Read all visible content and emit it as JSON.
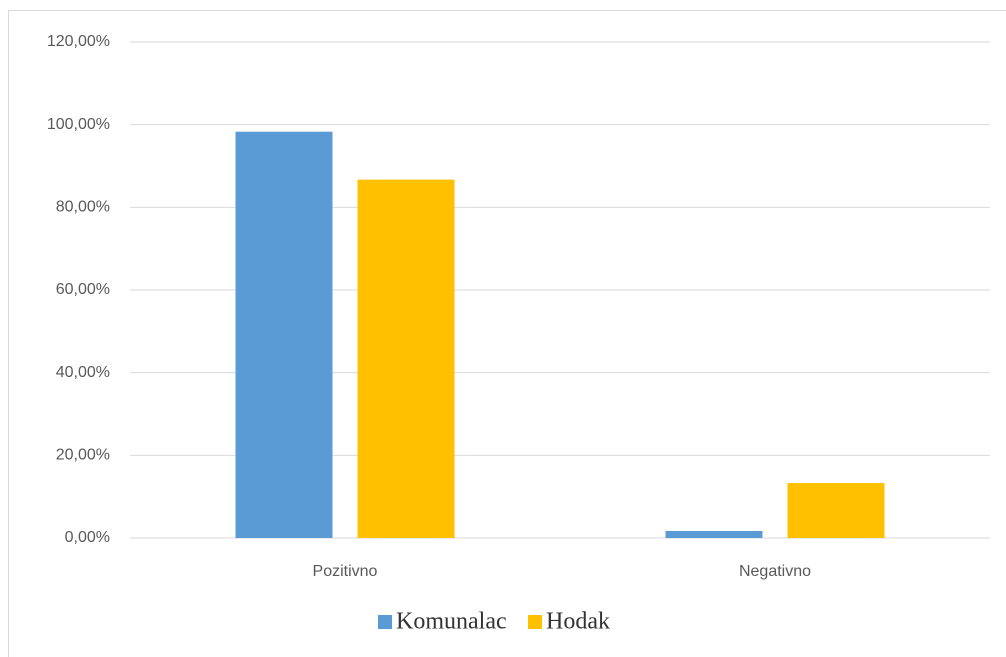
{
  "chart_data": {
    "type": "bar",
    "categories": [
      "Pozitivno",
      "Negativno"
    ],
    "series": [
      {
        "name": "Komunalac",
        "color": "#5b9bd5",
        "values": [
          98.3,
          1.7
        ]
      },
      {
        "name": "Hodak",
        "color": "#ffc000",
        "values": [
          86.7,
          13.3
        ]
      }
    ],
    "ylim": [
      0,
      120
    ],
    "yticks": [
      {
        "value": 0,
        "label": "0,00%"
      },
      {
        "value": 20,
        "label": "20,00%"
      },
      {
        "value": 40,
        "label": "40,00%"
      },
      {
        "value": 60,
        "label": "60,00%"
      },
      {
        "value": 80,
        "label": "80,00%"
      },
      {
        "value": 100,
        "label": "100,00%"
      },
      {
        "value": 120,
        "label": "120,00%"
      }
    ],
    "grid": true,
    "legend": "bottom"
  }
}
